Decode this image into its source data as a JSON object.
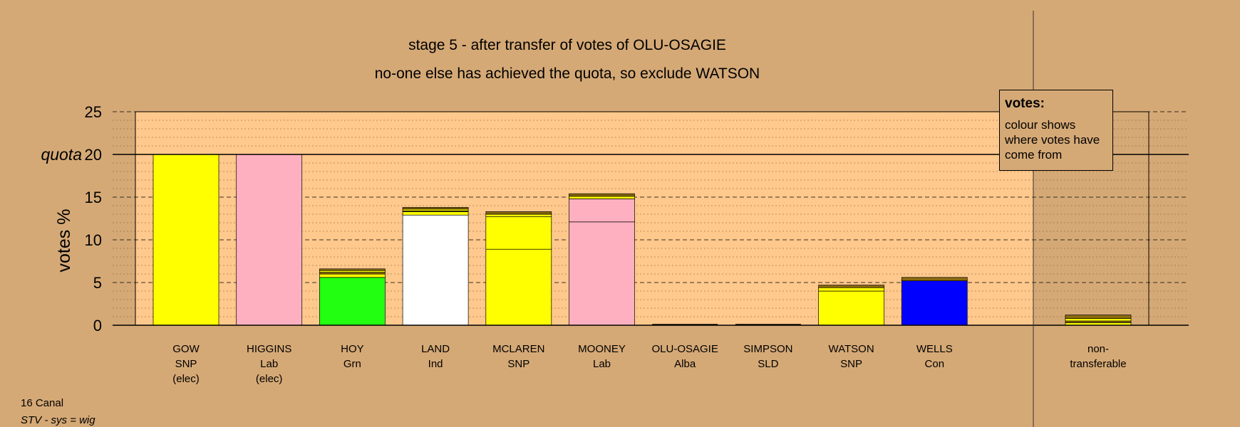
{
  "title": "stage 5 - after transfer of votes of OLU-OSAGIE",
  "subtitle": "no-one else has achieved the quota, so exclude WATSON",
  "legend": {
    "title": "votes:",
    "body": "colour shows where votes have come from"
  },
  "footer": {
    "ward": "16 Canal",
    "system": "STV - sys = wig"
  },
  "chart_data": {
    "type": "bar",
    "stacked": true,
    "ylabel": "votes %",
    "ylim": [
      0,
      25
    ],
    "yticks": [
      0,
      5,
      10,
      15,
      20,
      25
    ],
    "quota": 20,
    "quota_label": "quota",
    "grid": true,
    "colors": {
      "SNP": "#FFFF00",
      "Lab": "#FFB0C0",
      "Grn": "#22FF11",
      "Ind": "#FFFFFF",
      "Con": "#0000FF",
      "mix": "#8B6A10"
    },
    "candidates": [
      {
        "name": "GOW",
        "party": "SNP",
        "status": "(elec)",
        "total": 20.0,
        "segments": [
          {
            "from": "SNP",
            "value": 20.0
          }
        ]
      },
      {
        "name": "HIGGINS",
        "party": "Lab",
        "status": "(elec)",
        "total": 20.0,
        "segments": [
          {
            "from": "Lab",
            "value": 20.0
          }
        ]
      },
      {
        "name": "HOY",
        "party": "Grn",
        "status": "",
        "total": 6.6,
        "segments": [
          {
            "from": "Grn",
            "value": 5.6
          },
          {
            "from": "SNP",
            "value": 0.4
          },
          {
            "from": "mix",
            "value": 0.2
          },
          {
            "from": "SNP",
            "value": 0.2
          },
          {
            "from": "mix",
            "value": 0.2
          }
        ]
      },
      {
        "name": "LAND",
        "party": "Ind",
        "status": "",
        "total": 13.8,
        "segments": [
          {
            "from": "Ind",
            "value": 12.9
          },
          {
            "from": "SNP",
            "value": 0.4
          },
          {
            "from": "mix",
            "value": 0.1
          },
          {
            "from": "SNP",
            "value": 0.2
          },
          {
            "from": "mix",
            "value": 0.2
          }
        ]
      },
      {
        "name": "MCLAREN",
        "party": "SNP",
        "status": "",
        "total": 13.3,
        "segments": [
          {
            "from": "SNP",
            "value": 8.9
          },
          {
            "from": "SNP",
            "value": 3.8
          },
          {
            "from": "SNP",
            "value": 0.3
          },
          {
            "from": "mix",
            "value": 0.3
          }
        ]
      },
      {
        "name": "MOONEY",
        "party": "Lab",
        "status": "",
        "total": 15.4,
        "segments": [
          {
            "from": "Lab",
            "value": 12.1
          },
          {
            "from": "Lab",
            "value": 2.7
          },
          {
            "from": "SNP",
            "value": 0.3
          },
          {
            "from": "mix",
            "value": 0.3
          }
        ]
      },
      {
        "name": "OLU-OSAGIE",
        "party": "Alba",
        "status": "",
        "total": 0,
        "segments": []
      },
      {
        "name": "SIMPSON",
        "party": "SLD",
        "status": "",
        "total": 0,
        "segments": []
      },
      {
        "name": "WATSON",
        "party": "SNP",
        "status": "",
        "total": 4.7,
        "segments": [
          {
            "from": "SNP",
            "value": 4.0
          },
          {
            "from": "SNP",
            "value": 0.4
          },
          {
            "from": "mix",
            "value": 0.3
          }
        ]
      },
      {
        "name": "WELLS",
        "party": "Con",
        "status": "",
        "total": 5.6,
        "segments": [
          {
            "from": "Con",
            "value": 5.2
          },
          {
            "from": "mix",
            "value": 0.4
          }
        ]
      }
    ],
    "non_transferable": {
      "label_line1": "non-",
      "label_line2": "transferable",
      "total": 1.2,
      "segments": [
        {
          "from": "SNP",
          "value": 0.3
        },
        {
          "from": "mix",
          "value": 0.2
        },
        {
          "from": "SNP",
          "value": 0.3
        },
        {
          "from": "mix",
          "value": 0.4
        }
      ]
    }
  }
}
